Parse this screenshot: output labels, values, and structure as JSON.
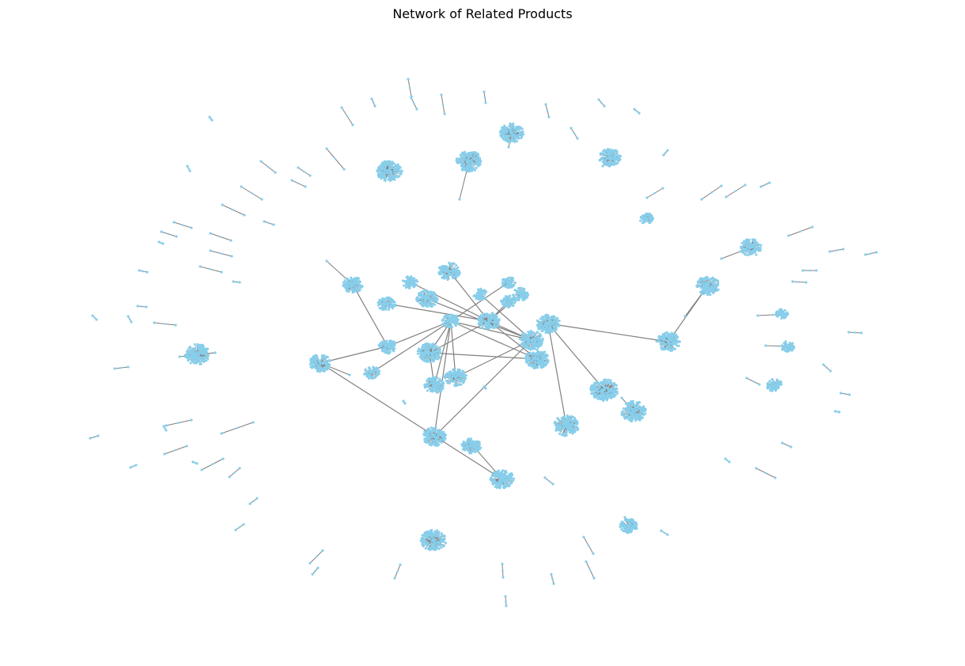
{
  "title": "Network of Related Products",
  "colors": {
    "node": "#87ceeb",
    "edge": "#808080",
    "background": "#ffffff"
  },
  "graph": {
    "hub_clusters": [
      {
        "id": "hub-1"
      },
      {
        "id": "hub-2"
      },
      {
        "id": "hub-3"
      },
      {
        "id": "hub-4"
      },
      {
        "id": "hub-5"
      },
      {
        "id": "hub-6"
      },
      {
        "id": "hub-7"
      },
      {
        "id": "hub-8"
      },
      {
        "id": "hub-9"
      },
      {
        "id": "hub-10"
      },
      {
        "id": "hub-11"
      },
      {
        "id": "hub-12"
      },
      {
        "id": "hub-13"
      },
      {
        "id": "hub-14"
      },
      {
        "id": "hub-15"
      },
      {
        "id": "hub-16"
      },
      {
        "id": "hub-17"
      },
      {
        "id": "hub-18"
      },
      {
        "id": "hub-19"
      },
      {
        "id": "hub-20"
      },
      {
        "id": "hub-21"
      },
      {
        "id": "hub-22"
      },
      {
        "id": "hub-23"
      },
      {
        "id": "hub-24"
      },
      {
        "id": "hub-25"
      },
      {
        "id": "hub-26"
      },
      {
        "id": "hub-27"
      },
      {
        "id": "hub-28"
      },
      {
        "id": "hub-29"
      },
      {
        "id": "hub-30"
      },
      {
        "id": "hub-31"
      },
      {
        "id": "hub-32"
      },
      {
        "id": "hub-33"
      },
      {
        "id": "hub-34"
      },
      {
        "id": "hub-35"
      },
      {
        "id": "hub-36"
      },
      {
        "id": "hub-37"
      },
      {
        "id": "hub-38"
      },
      {
        "id": "hub-39"
      },
      {
        "id": "hub-40"
      }
    ]
  }
}
